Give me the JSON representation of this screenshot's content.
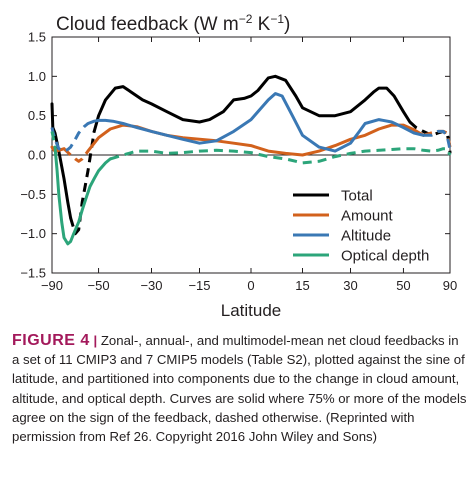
{
  "chart_data": {
    "type": "line",
    "title": "Cloud feedback (W m−2 K−1)",
    "title_base": "Cloud feedback (W m",
    "title_sup1": "−2",
    "title_mid": " K",
    "title_sup2": "−1",
    "title_end": ")",
    "xlabel": "Latitude",
    "ylabel": "",
    "xscale": "sine of latitude",
    "xlim": [
      -90,
      90
    ],
    "ylim": [
      -1.5,
      1.5
    ],
    "xticks": [
      -90,
      -50,
      -30,
      -15,
      0,
      15,
      30,
      50,
      90
    ],
    "xtick_labels": [
      "−90",
      "−50",
      "−30",
      "−15",
      "0",
      "15",
      "30",
      "50",
      "90"
    ],
    "yticks": [
      -1.5,
      -1.0,
      -0.5,
      0.0,
      0.5,
      1.0,
      1.5
    ],
    "ytick_labels": [
      "−1.5",
      "−1.0",
      "−0.5",
      "0.0",
      "0.5",
      "1.0",
      "1.5"
    ],
    "grid": false,
    "zero_line": true,
    "legend_position": "lower-right",
    "series": [
      {
        "name": "Total",
        "color": "#000000",
        "x": [
          -90,
          -85,
          -80,
          -75,
          -70,
          -67,
          -65,
          -62,
          -60,
          -58,
          -55,
          -52,
          -50,
          -47,
          -43,
          -40,
          -37,
          -33,
          -30,
          -25,
          -20,
          -15,
          -12,
          -8,
          -5,
          -2,
          0,
          2,
          5,
          7,
          10,
          13,
          15,
          20,
          25,
          30,
          35,
          38,
          40,
          43,
          46,
          50,
          53,
          56,
          60,
          65,
          70,
          75,
          80,
          85,
          88,
          90
        ],
        "y": [
          0.65,
          0.35,
          0.28,
          0.05,
          -0.3,
          -0.6,
          -0.8,
          -1.0,
          -0.95,
          -0.6,
          -0.2,
          0.3,
          0.5,
          0.7,
          0.85,
          0.87,
          0.8,
          0.7,
          0.65,
          0.55,
          0.45,
          0.42,
          0.45,
          0.55,
          0.7,
          0.72,
          0.75,
          0.82,
          0.98,
          1.0,
          0.95,
          0.75,
          0.6,
          0.5,
          0.5,
          0.55,
          0.7,
          0.8,
          0.85,
          0.85,
          0.75,
          0.55,
          0.42,
          0.35,
          0.3,
          0.25,
          0.28,
          0.3,
          0.28,
          0.15,
          0.05,
          0.02
        ],
        "dashed_ranges": [
          [
            -65,
            -52
          ],
          [
            53,
            90
          ]
        ]
      },
      {
        "name": "Amount",
        "color": "#d2611c",
        "x": [
          -90,
          -85,
          -80,
          -75,
          -70,
          -65,
          -62,
          -60,
          -58,
          -55,
          -52,
          -50,
          -45,
          -40,
          -35,
          -30,
          -25,
          -20,
          -15,
          -10,
          -5,
          0,
          5,
          10,
          15,
          20,
          25,
          30,
          35,
          40,
          45,
          50,
          55,
          60,
          65,
          70,
          75,
          80,
          85,
          90
        ],
        "y": [
          0.1,
          0.08,
          0.05,
          0.06,
          0.08,
          0.0,
          -0.05,
          -0.08,
          -0.05,
          0.05,
          0.15,
          0.22,
          0.33,
          0.38,
          0.36,
          0.3,
          0.25,
          0.22,
          0.2,
          0.18,
          0.15,
          0.12,
          0.05,
          0.02,
          0.0,
          0.05,
          0.12,
          0.2,
          0.25,
          0.33,
          0.38,
          0.38,
          0.32,
          0.25,
          0.28,
          0.3,
          0.3,
          0.28,
          0.15,
          0.1
        ],
        "dashed_ranges": [
          [
            -70,
            -55
          ],
          [
            60,
            90
          ]
        ]
      },
      {
        "name": "Altitude",
        "color": "#3a78b4",
        "x": [
          -90,
          -85,
          -80,
          -75,
          -70,
          -67,
          -65,
          -62,
          -60,
          -57,
          -55,
          -52,
          -50,
          -47,
          -44,
          -40,
          -35,
          -30,
          -25,
          -20,
          -15,
          -10,
          -5,
          0,
          3,
          5,
          7,
          9,
          12,
          15,
          20,
          25,
          30,
          33,
          35,
          40,
          45,
          50,
          55,
          60,
          65,
          70,
          75,
          80,
          85,
          90
        ],
        "y": [
          0.35,
          0.3,
          0.2,
          0.08,
          0.05,
          0.07,
          0.1,
          0.2,
          0.28,
          0.36,
          0.4,
          0.43,
          0.44,
          0.44,
          0.43,
          0.4,
          0.35,
          0.3,
          0.25,
          0.2,
          0.15,
          0.18,
          0.3,
          0.45,
          0.6,
          0.7,
          0.78,
          0.75,
          0.5,
          0.25,
          0.1,
          0.05,
          0.15,
          0.3,
          0.4,
          0.45,
          0.42,
          0.35,
          0.28,
          0.25,
          0.25,
          0.3,
          0.3,
          0.25,
          0.12,
          0.05
        ],
        "dashed_ranges": [
          [
            -90,
            -55
          ],
          [
            60,
            90
          ]
        ]
      },
      {
        "name": "Optical depth",
        "color": "#2ca57a",
        "x": [
          -90,
          -85,
          -80,
          -77,
          -75,
          -72,
          -70,
          -67,
          -65,
          -63,
          -60,
          -58,
          -56,
          -54,
          -52,
          -50,
          -47,
          -45,
          -40,
          -35,
          -30,
          -25,
          -20,
          -15,
          -10,
          -5,
          0,
          5,
          10,
          15,
          20,
          25,
          30,
          35,
          40,
          45,
          50,
          55,
          60,
          65,
          70,
          75,
          80,
          85,
          90
        ],
        "y": [
          0.3,
          0.25,
          0.1,
          -0.2,
          -0.5,
          -0.85,
          -1.05,
          -1.13,
          -1.1,
          -1.0,
          -0.85,
          -0.7,
          -0.55,
          -0.4,
          -0.3,
          -0.2,
          -0.1,
          -0.05,
          0.0,
          0.05,
          0.05,
          0.02,
          0.03,
          0.05,
          0.06,
          0.05,
          0.03,
          -0.02,
          -0.05,
          -0.1,
          -0.08,
          -0.02,
          0.02,
          0.05,
          0.06,
          0.07,
          0.08,
          0.08,
          0.06,
          0.05,
          0.06,
          0.08,
          0.08,
          0.02,
          0.0
        ],
        "dashed_ranges": [
          [
            -90,
            -80
          ],
          [
            -45,
            90
          ]
        ]
      }
    ]
  },
  "caption": {
    "label": "FIGURE 4",
    "separator": "|",
    "text": "Zonal-, annual-, and multimodel-mean net cloud feedbacks in a set of 11 CMIP3 and 7 CMIP5 models (Table S2), plotted against the sine of latitude, and partitioned into components due to the change in cloud amount, altitude, and optical depth. Curves are solid where 75% or more of the models agree on the sign of the feedback, dashed otherwise. (Reprinted with permission from Ref 26. Copyright 2016 John Wiley and Sons)"
  }
}
